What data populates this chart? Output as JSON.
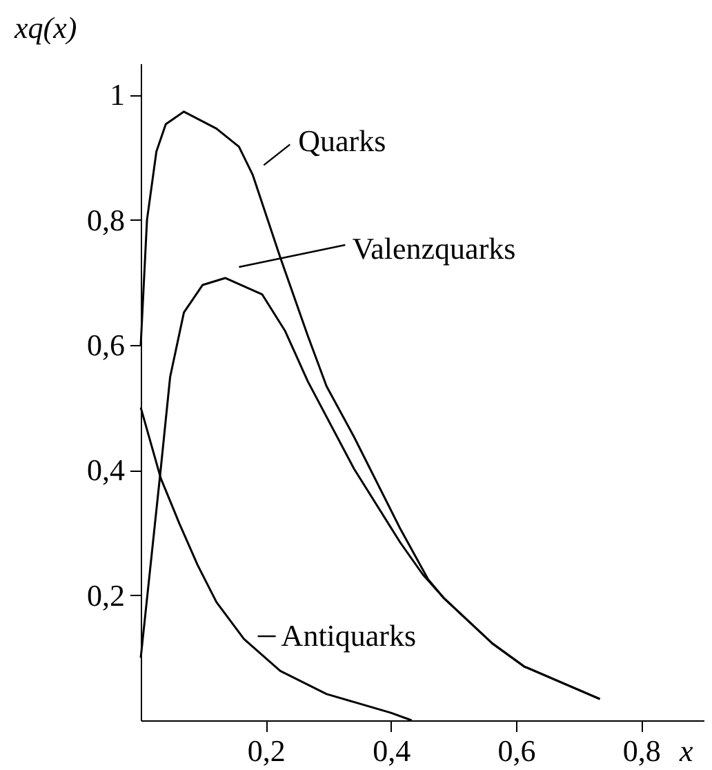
{
  "chart_data": {
    "type": "line",
    "xlabel": "x",
    "ylabel": "xq(x)",
    "xlim": [
      0,
      0.9
    ],
    "ylim": [
      0,
      1.05
    ],
    "xticks": [
      {
        "value": 0.2,
        "label": "0,2"
      },
      {
        "value": 0.4,
        "label": "0,4"
      },
      {
        "value": 0.6,
        "label": "0,6"
      },
      {
        "value": 0.8,
        "label": "0,8"
      }
    ],
    "yticks": [
      {
        "value": 0.2,
        "label": "0,2"
      },
      {
        "value": 0.4,
        "label": "0,4"
      },
      {
        "value": 0.6,
        "label": "0,6"
      },
      {
        "value": 0.8,
        "label": "0,8"
      },
      1
    ],
    "grid": false,
    "legend": "top left",
    "marker": "none",
    "line_style": "solid",
    "series": [
      {
        "name": "Quarks",
        "color": "#000000",
        "x": [
          0,
          0.01,
          0.025,
          0.04,
          0.069,
          0.121,
          0.157,
          0.179,
          0.223,
          0.267,
          0.297,
          0.341,
          0.415,
          0.459,
          0.484,
          0.562,
          0.613,
          0.734
        ],
        "values": [
          0.6,
          0.8,
          0.909,
          0.953,
          0.973,
          0.946,
          0.917,
          0.872,
          0.74,
          0.615,
          0.534,
          0.453,
          0.306,
          0.226,
          0.196,
          0.123,
          0.086,
          0.034
        ]
      },
      {
        "name": "Valenzquarks",
        "color": "#000000",
        "x": [
          0,
          0.032,
          0.047,
          0.069,
          0.099,
          0.135,
          0.194,
          0.231,
          0.267,
          0.341,
          0.415,
          0.451,
          0.484,
          0.562,
          0.613,
          0.734
        ],
        "values": [
          0.1,
          0.402,
          0.549,
          0.652,
          0.696,
          0.707,
          0.681,
          0.622,
          0.542,
          0.402,
          0.284,
          0.233,
          0.196,
          0.123,
          0.086,
          0.034
        ]
      },
      {
        "name": "Antiquarks",
        "color": "#000000",
        "x": [
          0,
          0.032,
          0.062,
          0.091,
          0.121,
          0.165,
          0.223,
          0.297,
          0.4,
          0.433
        ],
        "values": [
          0.5,
          0.387,
          0.314,
          0.248,
          0.189,
          0.13,
          0.079,
          0.042,
          0.012,
          0
        ]
      }
    ]
  }
}
